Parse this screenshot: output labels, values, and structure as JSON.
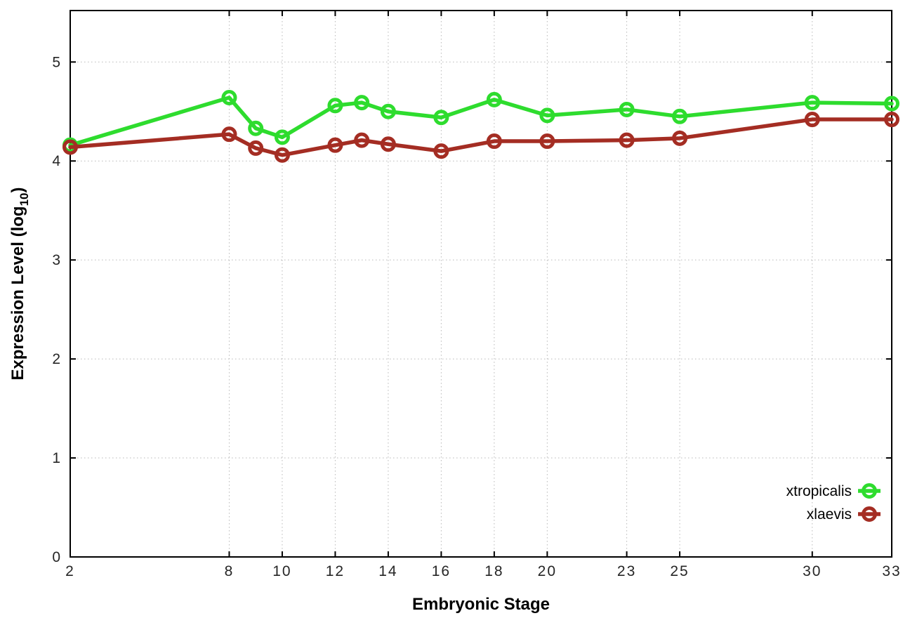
{
  "chart_data": {
    "type": "line",
    "title": "",
    "xlabel": "Embryonic Stage",
    "ylabel": "Expression Level (log10)",
    "ylabel_parts": {
      "main": "Expression Level (log",
      "sub": "10",
      "end": ")"
    },
    "x": [
      2,
      8,
      9,
      10,
      12,
      13,
      14,
      16,
      18,
      20,
      23,
      25,
      30,
      33
    ],
    "xticks": [
      2,
      8,
      10,
      12,
      14,
      16,
      18,
      20,
      23,
      25,
      30,
      33
    ],
    "yticks": [
      0,
      1,
      2,
      3,
      4,
      5
    ],
    "xlim": [
      2,
      33
    ],
    "ylim": [
      0,
      5.52
    ],
    "grid": true,
    "grid_color": "#b8b8b8",
    "axis_color": "#000000",
    "legend_position": "inside-right-bottom",
    "series": [
      {
        "name": "xtropicalis",
        "color": "#2edc2e",
        "values": [
          4.16,
          4.64,
          4.33,
          4.24,
          4.56,
          4.59,
          4.5,
          4.44,
          4.62,
          4.46,
          4.52,
          4.45,
          4.59,
          4.58
        ]
      },
      {
        "name": "xlaevis",
        "color": "#a42d23",
        "values": [
          4.14,
          4.27,
          4.13,
          4.06,
          4.16,
          4.21,
          4.17,
          4.1,
          4.2,
          4.2,
          4.21,
          4.23,
          4.42,
          4.42
        ]
      }
    ]
  }
}
